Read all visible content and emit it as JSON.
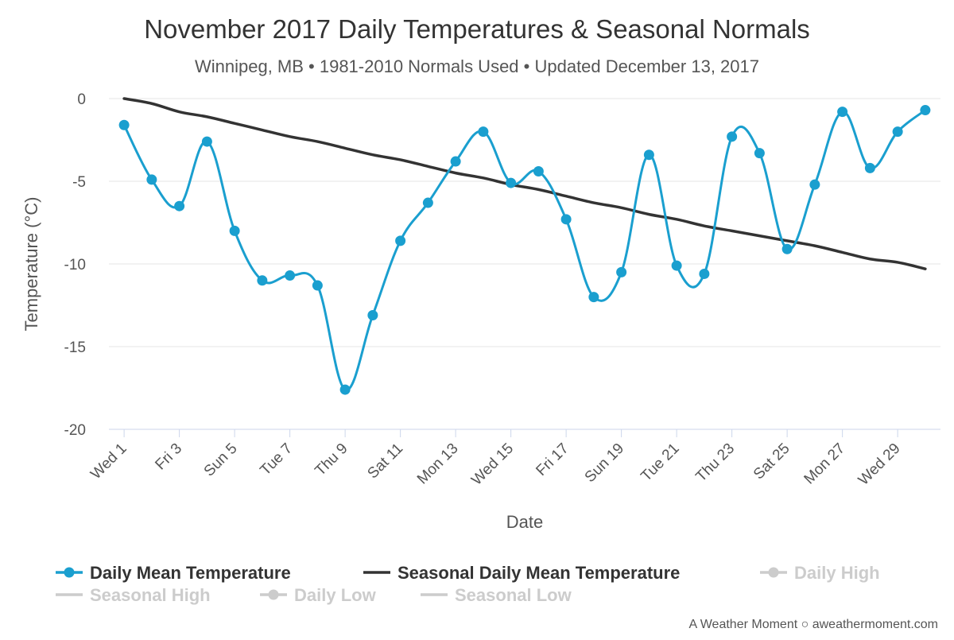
{
  "chart_data": {
    "type": "line",
    "title": "November 2017 Daily Temperatures & Seasonal Normals",
    "subtitle": "Winnipeg, MB • 1981-2010 Normals Used • Updated December 13, 2017",
    "xlabel": "Date",
    "ylabel": "Temperature (°C)",
    "ylim": [
      -20,
      0
    ],
    "yticks": [
      0,
      -5,
      -10,
      -15,
      -20
    ],
    "ytick_labels": [
      "0",
      "-5",
      "-10",
      "-15",
      "-20"
    ],
    "grid": true,
    "legend_position": "bottom",
    "x": [
      1,
      2,
      3,
      4,
      5,
      6,
      7,
      8,
      9,
      10,
      11,
      12,
      13,
      14,
      15,
      16,
      17,
      18,
      19,
      20,
      21,
      22,
      23,
      24,
      25,
      26,
      27,
      28,
      29,
      30
    ],
    "xtick_positions": [
      1,
      3,
      5,
      7,
      9,
      11,
      13,
      15,
      17,
      19,
      21,
      23,
      25,
      27,
      29
    ],
    "xtick_labels": [
      "Wed 1",
      "Fri 3",
      "Sun 5",
      "Tue 7",
      "Thu 9",
      "Sat 11",
      "Mon 13",
      "Wed 15",
      "Fri 17",
      "Sun 19",
      "Tue 21",
      "Thu 23",
      "Sat 25",
      "Mon 27",
      "Wed 29"
    ],
    "series": [
      {
        "name": "Daily Mean Temperature",
        "color": "#1a9fcf",
        "visible": true,
        "marker": true,
        "values": [
          -1.6,
          -4.9,
          -6.5,
          -2.6,
          -8.0,
          -11.0,
          -10.7,
          -11.3,
          -17.6,
          -13.1,
          -8.6,
          -6.3,
          -3.8,
          -2.0,
          -5.1,
          -4.4,
          -7.3,
          -12.0,
          -10.5,
          -3.4,
          -10.1,
          -10.6,
          -2.3,
          -3.3,
          -9.1,
          -5.2,
          -0.8,
          -4.2,
          -2.0,
          -0.7
        ]
      },
      {
        "name": "Seasonal Daily Mean Temperature",
        "color": "#333333",
        "visible": true,
        "marker": false,
        "values": [
          0.0,
          -0.3,
          -0.8,
          -1.1,
          -1.5,
          -1.9,
          -2.3,
          -2.6,
          -3.0,
          -3.4,
          -3.7,
          -4.1,
          -4.5,
          -4.8,
          -5.2,
          -5.5,
          -5.9,
          -6.3,
          -6.6,
          -7.0,
          -7.3,
          -7.7,
          -8.0,
          -8.3,
          -8.6,
          -8.9,
          -9.3,
          -9.7,
          -9.9,
          -10.3
        ]
      },
      {
        "name": "Daily High",
        "visible": false,
        "marker": true
      },
      {
        "name": "Seasonal High",
        "visible": false,
        "marker": false
      },
      {
        "name": "Daily Low",
        "visible": false,
        "marker": true
      },
      {
        "name": "Seasonal Low",
        "visible": false,
        "marker": false
      }
    ]
  },
  "credits": "A Weather Moment ○ aweathermoment.com",
  "colors": {
    "hidden_legend": "#cccccc",
    "grid": "#e6e6e6",
    "axis": "#ccd6eb"
  }
}
